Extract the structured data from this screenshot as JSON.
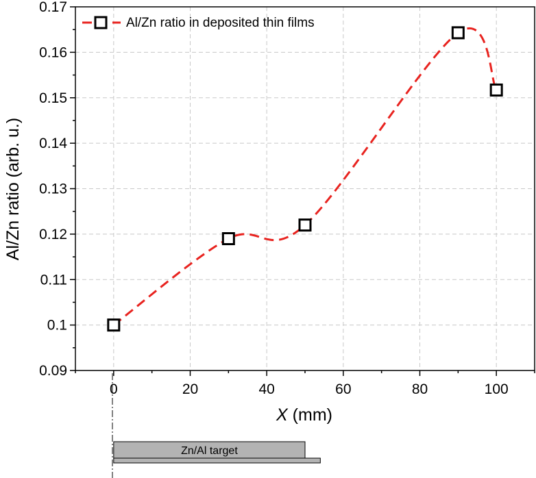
{
  "chart_data": {
    "type": "scatter",
    "xlabel_var": "X",
    "xlabel_unit": " (mm)",
    "ylabel": "Al/Zn ratio (arb. u.)",
    "xlim": [
      -10,
      110
    ],
    "ylim": [
      0.09,
      0.17
    ],
    "xticks": [
      0,
      20,
      40,
      60,
      80,
      100
    ],
    "xtick_labels": [
      "0",
      "20",
      "40",
      "60",
      "80",
      "100"
    ],
    "yticks": [
      0.09,
      0.1,
      0.11,
      0.12,
      0.13,
      0.14,
      0.15,
      0.16,
      0.17
    ],
    "ytick_labels": [
      "0.09",
      "0.1",
      "0.11",
      "0.12",
      "0.13",
      "0.14",
      "0.15",
      "0.16",
      "0.17"
    ],
    "grid": true,
    "legend_position": "top-left",
    "series": [
      {
        "name": "Al/Zn ratio in deposited thin films",
        "marker": "open-square",
        "color": "#000000",
        "line_color": "#e8231f",
        "line_style": "dashed",
        "x": [
          0,
          30,
          50,
          90,
          100
        ],
        "y": [
          0.1,
          0.119,
          0.122,
          0.1643,
          0.1517
        ]
      }
    ],
    "annotations": {
      "target_label": "Zn/Al target",
      "target_x_range": [
        0,
        50
      ],
      "target_base_x_range": [
        0,
        54
      ]
    }
  },
  "colors": {
    "grid": "#c8c8c8",
    "fit_line": "#e8231f",
    "target_fill": "#b3b3b3"
  }
}
